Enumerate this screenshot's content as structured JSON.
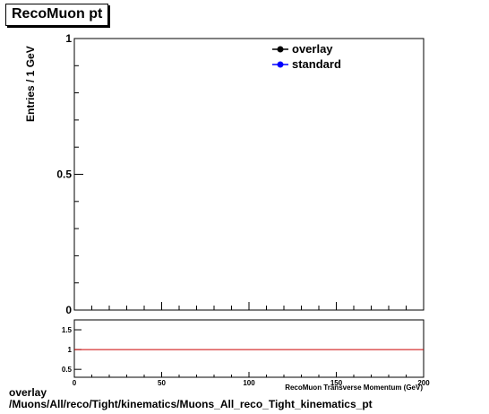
{
  "title": "RecoMuon pt",
  "footer": {
    "line1": "overlay",
    "line2": "/Muons/All/reco/Tight/kinematics/Muons_All_reco_Tight_kinematics_pt"
  },
  "chart_data": [
    {
      "type": "line",
      "ylabel": "Entries / 1 GeV",
      "ylim": [
        0,
        1
      ],
      "xlim": [
        0,
        200
      ],
      "yticks": [
        "0",
        "0.5",
        "1"
      ],
      "legend_position": "top-right",
      "series": [
        {
          "name": "overlay",
          "color": "#000000",
          "values": []
        },
        {
          "name": "standard",
          "color": "#0000ff",
          "values": []
        }
      ]
    },
    {
      "type": "line",
      "xlabel": "RecoMuon Transverse Momentum (GeV)",
      "xlim": [
        0,
        200
      ],
      "ylim": [
        0.3,
        1.75
      ],
      "xticks": [
        "0",
        "50",
        "100",
        "150",
        "200"
      ],
      "yticks": [
        "0.5",
        "1",
        "1.5"
      ],
      "reference_line": 1,
      "reference_color": "#cc0000"
    }
  ]
}
